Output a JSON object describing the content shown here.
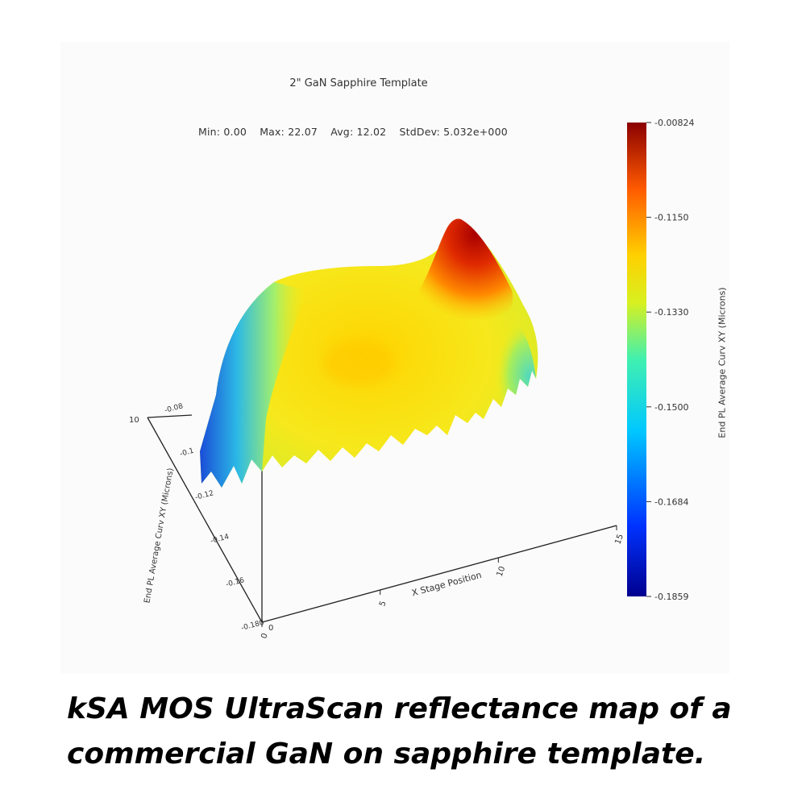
{
  "chart_data": {
    "type": "surface",
    "title": "2\" GaN Sapphire Template",
    "stats": {
      "min": "Min: 0.00",
      "max": "Max: 22.07",
      "avg": "Avg: 12.02",
      "stddev": "StdDev: 5.032e+000"
    },
    "colorbar": {
      "label": "End PL Average Curv XY (Microns)",
      "ticks": [
        -0.00824,
        -0.115,
        -0.133,
        -0.15,
        -0.1684,
        -0.1859
      ],
      "tick_labels": [
        "-0.00824",
        "-0.1150",
        "-0.1330",
        "-0.1500",
        "-0.1684",
        "-0.1859"
      ],
      "colormap": "jet"
    },
    "axes": {
      "x_label": "X Stage Position",
      "x_ticks": [
        "0",
        "5",
        "10",
        "15"
      ],
      "y_label": "End PL Average Curv XY (Microns)",
      "y_ticks": [
        "-0.08",
        "-0.1",
        "-0.12",
        "-0.14",
        "-0.16",
        "-0.180"
      ],
      "z_ticks": [
        "10",
        "0"
      ]
    }
  },
  "caption": {
    "line1": "kSA MOS UltraScan reflectance map of a",
    "line2": "commercial GaN on sapphire template."
  }
}
